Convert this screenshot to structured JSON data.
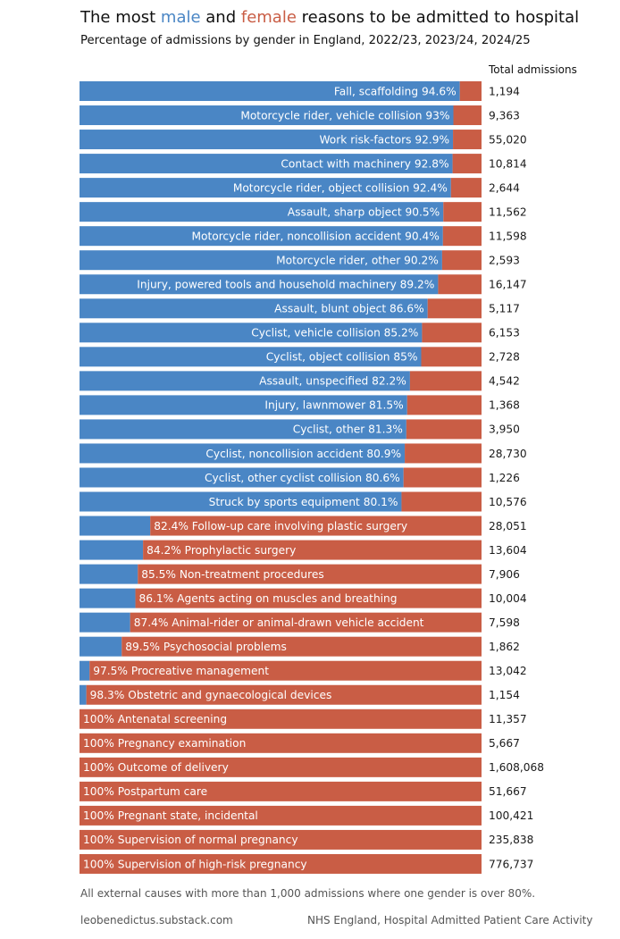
{
  "title": {
    "prefix": "The most ",
    "male_word": "male",
    "middle": " and ",
    "female_word": "female",
    "suffix": " reasons to be admitted to hospital"
  },
  "subtitle": "Percentage of admissions by gender in England, 2022/23, 2023/24, 2024/25",
  "totals_header": "Total admissions",
  "note": "All external causes with more than 1,000 admissions where one gender is over 80%.",
  "footer": {
    "left": "leobenedictus.substack.com",
    "right": "NHS England, Hospital Admitted Patient Care Activity"
  },
  "colors": {
    "male": "#4a86c5",
    "female": "#c95d45"
  },
  "chart_data": {
    "type": "bar",
    "orientation": "horizontal-stacked-100",
    "title": "The most male and female reasons to be admitted to hospital",
    "series": [
      {
        "name": "male",
        "color": "#4a86c5"
      },
      {
        "name": "female",
        "color": "#c95d45"
      }
    ],
    "xlim": [
      0,
      100
    ],
    "unit": "%",
    "rows": [
      {
        "label": "Fall, scaffolding",
        "dominant": "male",
        "pct": 94.6,
        "pct_text": "94.6%",
        "total": "1,194"
      },
      {
        "label": "Motorcycle rider, vehicle collision",
        "dominant": "male",
        "pct": 93,
        "pct_text": "93%",
        "total": "9,363"
      },
      {
        "label": "Work risk-factors",
        "dominant": "male",
        "pct": 92.9,
        "pct_text": "92.9%",
        "total": "55,020"
      },
      {
        "label": "Contact with machinery",
        "dominant": "male",
        "pct": 92.8,
        "pct_text": "92.8%",
        "total": "10,814"
      },
      {
        "label": "Motorcycle rider, object collision",
        "dominant": "male",
        "pct": 92.4,
        "pct_text": "92.4%",
        "total": "2,644"
      },
      {
        "label": "Assault, sharp object",
        "dominant": "male",
        "pct": 90.5,
        "pct_text": "90.5%",
        "total": "11,562"
      },
      {
        "label": "Motorcycle rider, noncollision accident",
        "dominant": "male",
        "pct": 90.4,
        "pct_text": "90.4%",
        "total": "11,598"
      },
      {
        "label": "Motorcycle rider, other",
        "dominant": "male",
        "pct": 90.2,
        "pct_text": "90.2%",
        "total": "2,593"
      },
      {
        "label": "Injury, powered tools and household machinery",
        "dominant": "male",
        "pct": 89.2,
        "pct_text": "89.2%",
        "total": "16,147"
      },
      {
        "label": "Assault, blunt object",
        "dominant": "male",
        "pct": 86.6,
        "pct_text": "86.6%",
        "total": "5,117"
      },
      {
        "label": "Cyclist, vehicle collision",
        "dominant": "male",
        "pct": 85.2,
        "pct_text": "85.2%",
        "total": "6,153"
      },
      {
        "label": "Cyclist, object collision",
        "dominant": "male",
        "pct": 85,
        "pct_text": "85%",
        "total": "2,728"
      },
      {
        "label": "Assault, unspecified",
        "dominant": "male",
        "pct": 82.2,
        "pct_text": "82.2%",
        "total": "4,542"
      },
      {
        "label": "Injury, lawnmower",
        "dominant": "male",
        "pct": 81.5,
        "pct_text": "81.5%",
        "total": "1,368"
      },
      {
        "label": "Cyclist, other",
        "dominant": "male",
        "pct": 81.3,
        "pct_text": "81.3%",
        "total": "3,950"
      },
      {
        "label": "Cyclist, noncollision accident",
        "dominant": "male",
        "pct": 80.9,
        "pct_text": "80.9%",
        "total": "28,730"
      },
      {
        "label": "Cyclist, other cyclist collision",
        "dominant": "male",
        "pct": 80.6,
        "pct_text": "80.6%",
        "total": "1,226"
      },
      {
        "label": "Struck by sports equipment",
        "dominant": "male",
        "pct": 80.1,
        "pct_text": "80.1%",
        "total": "10,576"
      },
      {
        "label": "Follow-up care involving plastic surgery",
        "dominant": "female",
        "pct": 82.4,
        "pct_text": "82.4%",
        "total": "28,051"
      },
      {
        "label": "Prophylactic surgery",
        "dominant": "female",
        "pct": 84.2,
        "pct_text": "84.2%",
        "total": "13,604"
      },
      {
        "label": "Non-treatment procedures",
        "dominant": "female",
        "pct": 85.5,
        "pct_text": "85.5%",
        "total": "7,906"
      },
      {
        "label": "Agents acting on muscles and breathing",
        "dominant": "female",
        "pct": 86.1,
        "pct_text": "86.1%",
        "total": "10,004"
      },
      {
        "label": "Animal-rider or animal-drawn vehicle accident",
        "dominant": "female",
        "pct": 87.4,
        "pct_text": "87.4%",
        "total": "7,598"
      },
      {
        "label": "Psychosocial problems",
        "dominant": "female",
        "pct": 89.5,
        "pct_text": "89.5%",
        "total": "1,862"
      },
      {
        "label": "Procreative management",
        "dominant": "female",
        "pct": 97.5,
        "pct_text": "97.5%",
        "total": "13,042"
      },
      {
        "label": "Obstetric and gynaecological devices",
        "dominant": "female",
        "pct": 98.3,
        "pct_text": "98.3%",
        "total": "1,154"
      },
      {
        "label": "Antenatal screening",
        "dominant": "female",
        "pct": 100,
        "pct_text": "100%",
        "total": "11,357"
      },
      {
        "label": "Pregnancy examination",
        "dominant": "female",
        "pct": 100,
        "pct_text": "100%",
        "total": "5,667"
      },
      {
        "label": "Outcome of delivery",
        "dominant": "female",
        "pct": 100,
        "pct_text": "100%",
        "total": "1,608,068"
      },
      {
        "label": "Postpartum care",
        "dominant": "female",
        "pct": 100,
        "pct_text": "100%",
        "total": "51,667"
      },
      {
        "label": "Pregnant state, incidental",
        "dominant": "female",
        "pct": 100,
        "pct_text": "100%",
        "total": "100,421"
      },
      {
        "label": "Supervision of normal pregnancy",
        "dominant": "female",
        "pct": 100,
        "pct_text": "100%",
        "total": "235,838"
      },
      {
        "label": "Supervision of high-risk pregnancy",
        "dominant": "female",
        "pct": 100,
        "pct_text": "100%",
        "total": "776,737"
      }
    ]
  }
}
